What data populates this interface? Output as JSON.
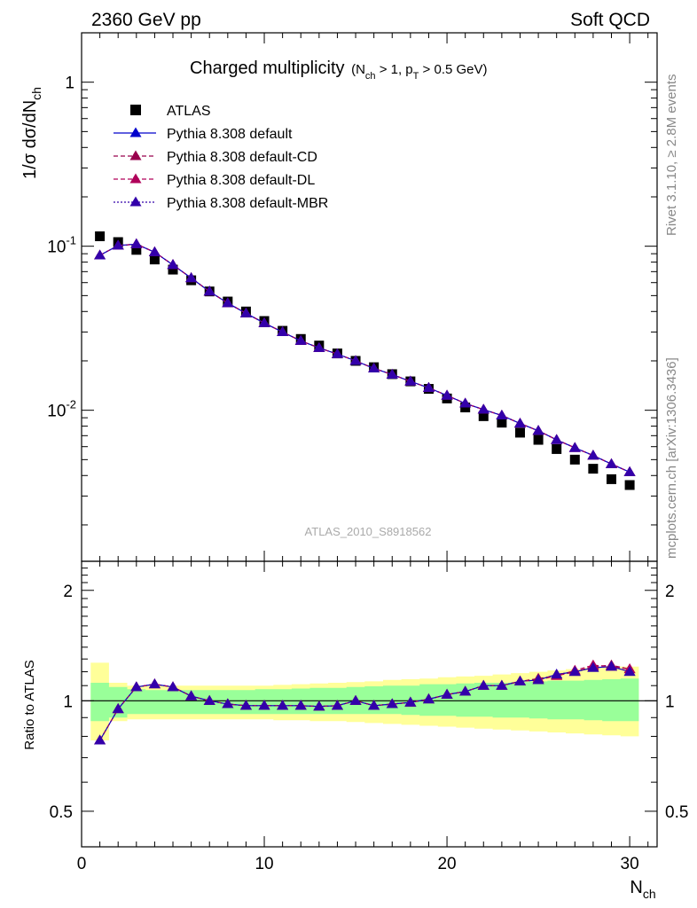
{
  "header": {
    "left": "2360 GeV pp",
    "right": "Soft QCD"
  },
  "main": {
    "title": "Charged multiplicity",
    "title_cuts": "(N_ch > 1, p_T > 0.5 GeV)",
    "ylabel": "1/σ dσ/dN_ch",
    "watermark": "ATLAS_2010_S8918562",
    "y_ticks": [
      "10^-2",
      "10^-1",
      "1"
    ]
  },
  "ratio": {
    "ylabel": "Ratio to ATLAS",
    "tick_labels": [
      "0.5",
      "1",
      "2"
    ]
  },
  "xaxis": {
    "label": "N_ch",
    "tick_labels": [
      "0",
      "10",
      "20",
      "30"
    ]
  },
  "side": {
    "rivet": "Rivet 3.1.10, ≥ 2.8M events",
    "mcplots": "mcplots.cern.ch [arXiv:1306.3436]"
  },
  "colors": {
    "data": "#000000",
    "default": "#0000cc",
    "cd": "#99004d",
    "dl": "#b0005a",
    "mbr": "#3300aa",
    "band_inner": "#99ff99",
    "band_outer": "#ffff99"
  },
  "chart_data": {
    "type": "line",
    "xlim": [
      0,
      31.5
    ],
    "ylim_main": [
      0.0012,
      2.0
    ],
    "ylim_ratio": [
      0.4,
      2.4
    ],
    "yscale_main": "log",
    "yscale_ratio": "log",
    "legend_position": "top-left",
    "x": [
      1,
      2,
      3,
      4,
      5,
      6,
      7,
      8,
      9,
      10,
      11,
      12,
      13,
      14,
      15,
      16,
      17,
      18,
      19,
      20,
      21,
      22,
      23,
      24,
      25,
      26,
      27,
      28,
      29,
      30
    ],
    "series": [
      {
        "name": "ATLAS",
        "type": "data",
        "color": "#000000",
        "values": [
          0.115,
          0.106,
          0.095,
          0.083,
          0.072,
          0.062,
          0.053,
          0.046,
          0.04,
          0.035,
          0.0305,
          0.0272,
          0.0248,
          0.0222,
          0.02,
          0.0183,
          0.0166,
          0.015,
          0.0135,
          0.0118,
          0.0104,
          0.0092,
          0.0084,
          0.0073,
          0.0066,
          0.0058,
          0.005,
          0.0044,
          0.0038,
          0.0035
        ]
      },
      {
        "name": "Pythia 8.308 default",
        "color": "#0000cc",
        "values": [
          0.088,
          0.101,
          0.103,
          0.092,
          0.077,
          0.064,
          0.053,
          0.045,
          0.039,
          0.034,
          0.03,
          0.0265,
          0.024,
          0.022,
          0.02,
          0.018,
          0.0165,
          0.015,
          0.0137,
          0.0123,
          0.011,
          0.0101,
          0.0093,
          0.0083,
          0.0075,
          0.0066,
          0.0059,
          0.0053,
          0.0047,
          0.0042
        ]
      },
      {
        "name": "Pythia 8.308 default-CD",
        "color": "#99004d",
        "values": [
          0.088,
          0.101,
          0.103,
          0.092,
          0.077,
          0.064,
          0.053,
          0.045,
          0.039,
          0.034,
          0.03,
          0.0265,
          0.024,
          0.022,
          0.02,
          0.018,
          0.0165,
          0.015,
          0.0137,
          0.0123,
          0.011,
          0.0101,
          0.0093,
          0.0083,
          0.0075,
          0.0066,
          0.0059,
          0.0053,
          0.0047,
          0.0042
        ]
      },
      {
        "name": "Pythia 8.308 default-DL",
        "color": "#b0005a",
        "values": [
          0.088,
          0.101,
          0.103,
          0.092,
          0.077,
          0.064,
          0.053,
          0.045,
          0.039,
          0.034,
          0.03,
          0.0265,
          0.024,
          0.022,
          0.02,
          0.018,
          0.0165,
          0.015,
          0.0137,
          0.0123,
          0.011,
          0.0101,
          0.0093,
          0.0083,
          0.0075,
          0.0066,
          0.0059,
          0.0053,
          0.0047,
          0.0042
        ]
      },
      {
        "name": "Pythia 8.308 default-MBR",
        "color": "#3300aa",
        "values": [
          0.088,
          0.101,
          0.103,
          0.092,
          0.077,
          0.064,
          0.053,
          0.045,
          0.039,
          0.034,
          0.03,
          0.0265,
          0.024,
          0.022,
          0.02,
          0.018,
          0.0165,
          0.015,
          0.0137,
          0.0123,
          0.011,
          0.0101,
          0.0093,
          0.0083,
          0.0075,
          0.0066,
          0.0059,
          0.0053,
          0.0047,
          0.0042
        ]
      }
    ],
    "ratio_series": [
      {
        "name": "Pythia 8.308 default",
        "values": [
          0.78,
          0.95,
          1.09,
          1.11,
          1.09,
          1.03,
          1.0,
          0.98,
          0.97,
          0.97,
          0.97,
          0.97,
          0.965,
          0.97,
          1.0,
          0.97,
          0.98,
          0.99,
          1.01,
          1.04,
          1.06,
          1.1,
          1.1,
          1.13,
          1.14,
          1.18,
          1.2,
          1.23,
          1.24,
          1.2
        ]
      },
      {
        "name": "Pythia 8.308 default-CD",
        "values": [
          0.78,
          0.95,
          1.09,
          1.11,
          1.09,
          1.03,
          1.0,
          0.98,
          0.97,
          0.97,
          0.97,
          0.97,
          0.965,
          0.97,
          1.0,
          0.97,
          0.98,
          0.99,
          1.01,
          1.04,
          1.06,
          1.1,
          1.1,
          1.13,
          1.15,
          1.17,
          1.2,
          1.24,
          1.25,
          1.22
        ]
      },
      {
        "name": "Pythia 8.308 default-DL",
        "values": [
          0.78,
          0.95,
          1.09,
          1.11,
          1.09,
          1.03,
          1.0,
          0.98,
          0.97,
          0.97,
          0.97,
          0.97,
          0.965,
          0.97,
          1.0,
          0.97,
          0.98,
          0.99,
          1.01,
          1.04,
          1.06,
          1.1,
          1.1,
          1.13,
          1.14,
          1.17,
          1.21,
          1.25,
          1.24,
          1.22
        ]
      },
      {
        "name": "Pythia 8.308 default-MBR",
        "values": [
          0.78,
          0.95,
          1.09,
          1.11,
          1.09,
          1.03,
          1.0,
          0.98,
          0.97,
          0.97,
          0.97,
          0.97,
          0.965,
          0.97,
          1.0,
          0.97,
          0.98,
          0.99,
          1.01,
          1.04,
          1.06,
          1.1,
          1.1,
          1.13,
          1.14,
          1.18,
          1.2,
          1.23,
          1.24,
          1.2
        ]
      }
    ],
    "band_inner": {
      "lo": [
        0.88,
        0.9,
        0.92,
        0.92,
        0.92,
        0.92,
        0.92,
        0.92,
        0.92,
        0.92,
        0.92,
        0.92,
        0.92,
        0.92,
        0.92,
        0.92,
        0.92,
        0.915,
        0.91,
        0.91,
        0.905,
        0.905,
        0.9,
        0.9,
        0.895,
        0.89,
        0.89,
        0.885,
        0.88,
        0.88
      ],
      "hi": [
        1.12,
        1.09,
        1.075,
        1.07,
        1.07,
        1.07,
        1.07,
        1.07,
        1.07,
        1.075,
        1.075,
        1.08,
        1.085,
        1.085,
        1.09,
        1.095,
        1.1,
        1.1,
        1.11,
        1.11,
        1.115,
        1.12,
        1.12,
        1.125,
        1.13,
        1.135,
        1.135,
        1.14,
        1.145,
        1.15
      ]
    },
    "band_outer": {
      "lo": [
        0.78,
        0.88,
        0.89,
        0.89,
        0.89,
        0.89,
        0.89,
        0.89,
        0.89,
        0.89,
        0.885,
        0.885,
        0.88,
        0.88,
        0.875,
        0.87,
        0.865,
        0.86,
        0.855,
        0.85,
        0.845,
        0.84,
        0.835,
        0.83,
        0.825,
        0.82,
        0.815,
        0.81,
        0.805,
        0.8
      ],
      "hi": [
        1.27,
        1.12,
        1.1,
        1.1,
        1.1,
        1.1,
        1.1,
        1.1,
        1.1,
        1.1,
        1.105,
        1.11,
        1.115,
        1.12,
        1.125,
        1.13,
        1.14,
        1.145,
        1.15,
        1.16,
        1.165,
        1.17,
        1.18,
        1.19,
        1.2,
        1.21,
        1.22,
        1.23,
        1.24,
        1.24
      ]
    }
  }
}
